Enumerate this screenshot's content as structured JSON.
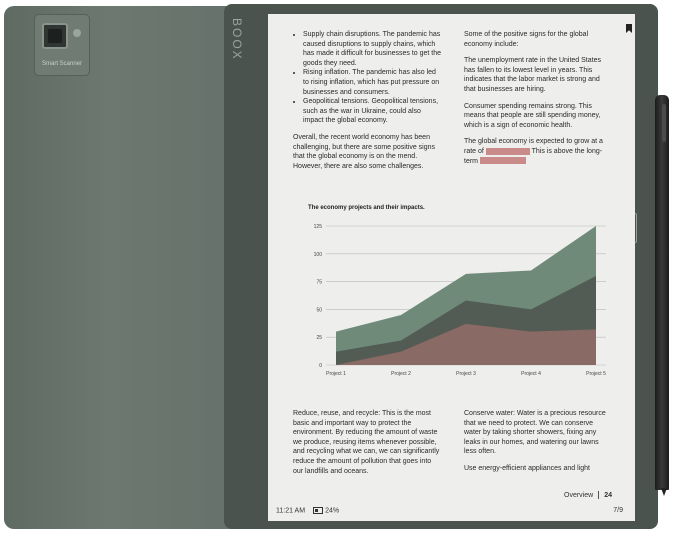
{
  "device": {
    "scanner_label": "Smart Scanner",
    "brand": "BOOX"
  },
  "reader": {
    "left_top": {
      "bullets": [
        "Supply chain disruptions. The pandemic has caused disruptions to supply chains, which has made it difficult for businesses to get the goods they need.",
        "Rising inflation. The pandemic has also led to rising inflation, which has put pressure on businesses and consumers.",
        "Geopolitical tensions. Geopolitical tensions, such as the war in Ukraine, could also impact the global economy."
      ],
      "paragraph": "Overall, the recent world economy has been challenging, but there are some positive signs that the global economy is on the mend. However, there are also some challenges."
    },
    "right_top": {
      "p1": "Some of the positive signs for the global economy include:",
      "p2": "The unemployment rate in the United States has fallen to its lowest level in years. This indicates that the labor market is strong and that businesses are hiring.",
      "p3": "Consumer spending remains strong. This means that people are still spending money, which is a sign of economic health.",
      "p4_a": "The global economy is expected to grow at a rate of",
      "p4_b": "This is above the long-term"
    },
    "left_bottom": {
      "p1": "Reduce, reuse, and recycle: This is the most basic and important way to protect the environment. By reducing the amount of waste we produce, reusing items whenever possible, and recycling what we can, we can significantly reduce the amount of pollution that goes into our landfills and oceans."
    },
    "right_bottom": {
      "p1": "Conserve water: Water is a precious resource that we need to protect. We can conserve water by taking shorter showers, fixing any leaks in our homes, and watering our lawns less often.",
      "p2": "Use energy-efficient appliances and light"
    },
    "footer": {
      "time": "11:21 AM",
      "battery": "24%",
      "chapter": "Overview",
      "page": "24",
      "progress": "7/9"
    },
    "highlight_color": "#c98a8a"
  },
  "chart_data": {
    "type": "area",
    "title": "The economy projects and their impacts.",
    "categories": [
      "Project 1",
      "Project 2",
      "Project 3",
      "Project 4",
      "Project 5"
    ],
    "series": [
      {
        "values": [
          30,
          45,
          82,
          85,
          125
        ],
        "color": "#6f8a78"
      },
      {
        "values": [
          12,
          22,
          58,
          50,
          80
        ],
        "color": "#525c55"
      },
      {
        "values": [
          0,
          12,
          37,
          30,
          32
        ],
        "color": "#8a6a64"
      }
    ],
    "ylim": [
      0,
      125
    ],
    "yticks": [
      0,
      25,
      50,
      75,
      100,
      125
    ],
    "grid": true
  }
}
